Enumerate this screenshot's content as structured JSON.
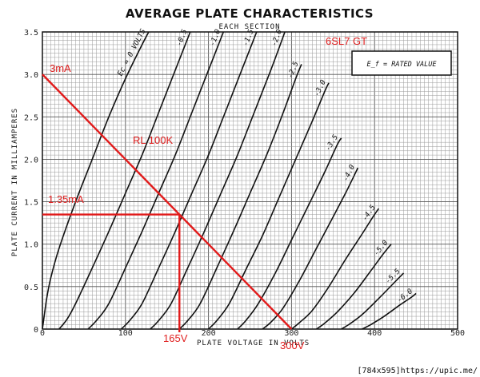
{
  "chart_data": {
    "type": "line",
    "title": "AVERAGE PLATE CHARACTERISTICS",
    "subtitle": "EACH SECTION",
    "tube": "6SL7 GT",
    "note": "E_f = RATED VALUE",
    "xlabel": "PLATE VOLTAGE IN VOLTS",
    "ylabel": "PLATE CURRENT IN MILLIAMPERES",
    "xlim": [
      0,
      500
    ],
    "ylim": [
      0,
      3.5
    ],
    "x_ticks": [
      0,
      100,
      200,
      300,
      400,
      500
    ],
    "y_ticks": [
      0,
      0.5,
      1.0,
      1.5,
      2.0,
      2.5,
      3.0,
      3.5
    ],
    "x_tick_labels": [
      "0",
      "100",
      "200",
      "300",
      "400",
      "500"
    ],
    "y_tick_labels": [
      "0",
      "0.5",
      "1.0",
      "1.5",
      "2.0",
      "2.5",
      "3.0",
      "3.5"
    ],
    "grid": true,
    "series": [
      {
        "name": "Ec = 0 VOLTS",
        "label": "Ec = 0 VOLTS",
        "points": [
          [
            0,
            0
          ],
          [
            5,
            0.35
          ],
          [
            10,
            0.6
          ],
          [
            20,
            0.95
          ],
          [
            40,
            1.5
          ],
          [
            60,
            2.0
          ],
          [
            80,
            2.5
          ],
          [
            100,
            2.95
          ],
          [
            120,
            3.35
          ],
          [
            128,
            3.5
          ]
        ]
      },
      {
        "name": "-0.5",
        "label": "-0.5",
        "points": [
          [
            20,
            0
          ],
          [
            30,
            0.12
          ],
          [
            40,
            0.3
          ],
          [
            60,
            0.72
          ],
          [
            80,
            1.15
          ],
          [
            100,
            1.6
          ],
          [
            120,
            2.05
          ],
          [
            140,
            2.55
          ],
          [
            160,
            3.05
          ],
          [
            178,
            3.5
          ]
        ]
      },
      {
        "name": "-1.0",
        "label": "-1.0",
        "points": [
          [
            55,
            0
          ],
          [
            65,
            0.1
          ],
          [
            80,
            0.3
          ],
          [
            100,
            0.72
          ],
          [
            120,
            1.15
          ],
          [
            140,
            1.6
          ],
          [
            160,
            2.05
          ],
          [
            180,
            2.55
          ],
          [
            200,
            3.05
          ],
          [
            218,
            3.5
          ]
        ]
      },
      {
        "name": "-1.5",
        "label": "-1.5",
        "points": [
          [
            95,
            0
          ],
          [
            105,
            0.1
          ],
          [
            120,
            0.3
          ],
          [
            140,
            0.72
          ],
          [
            160,
            1.15
          ],
          [
            180,
            1.6
          ],
          [
            200,
            2.05
          ],
          [
            220,
            2.55
          ],
          [
            240,
            3.05
          ],
          [
            258,
            3.5
          ]
        ]
      },
      {
        "name": "-2.0",
        "label": "-2.0",
        "points": [
          [
            130,
            0
          ],
          [
            140,
            0.1
          ],
          [
            155,
            0.3
          ],
          [
            175,
            0.72
          ],
          [
            195,
            1.15
          ],
          [
            215,
            1.6
          ],
          [
            235,
            2.05
          ],
          [
            255,
            2.55
          ],
          [
            275,
            3.05
          ],
          [
            292,
            3.5
          ]
        ]
      },
      {
        "name": "-2.5",
        "label": "-2.5",
        "points": [
          [
            165,
            0
          ],
          [
            175,
            0.1
          ],
          [
            190,
            0.3
          ],
          [
            210,
            0.72
          ],
          [
            230,
            1.15
          ],
          [
            250,
            1.6
          ],
          [
            270,
            2.05
          ],
          [
            290,
            2.55
          ],
          [
            305,
            2.95
          ],
          [
            312,
            3.12
          ]
        ]
      },
      {
        "name": "-3.0",
        "label": "-3.0",
        "points": [
          [
            200,
            0
          ],
          [
            210,
            0.1
          ],
          [
            225,
            0.3
          ],
          [
            245,
            0.7
          ],
          [
            265,
            1.1
          ],
          [
            285,
            1.55
          ],
          [
            305,
            2.0
          ],
          [
            325,
            2.45
          ],
          [
            340,
            2.8
          ],
          [
            345,
            2.9
          ]
        ]
      },
      {
        "name": "-3.5",
        "label": "-3.5",
        "points": [
          [
            235,
            0
          ],
          [
            245,
            0.1
          ],
          [
            260,
            0.3
          ],
          [
            280,
            0.65
          ],
          [
            300,
            1.05
          ],
          [
            320,
            1.45
          ],
          [
            340,
            1.85
          ],
          [
            355,
            2.17
          ],
          [
            360,
            2.25
          ]
        ]
      },
      {
        "name": "-4.0",
        "label": "-4.0",
        "points": [
          [
            265,
            0
          ],
          [
            275,
            0.08
          ],
          [
            290,
            0.25
          ],
          [
            310,
            0.58
          ],
          [
            330,
            0.95
          ],
          [
            350,
            1.32
          ],
          [
            365,
            1.6
          ],
          [
            375,
            1.8
          ],
          [
            380,
            1.9
          ]
        ]
      },
      {
        "name": "-4.5",
        "label": "-4.5",
        "points": [
          [
            300,
            0
          ],
          [
            310,
            0.08
          ],
          [
            325,
            0.22
          ],
          [
            345,
            0.5
          ],
          [
            365,
            0.82
          ],
          [
            385,
            1.12
          ],
          [
            398,
            1.32
          ],
          [
            405,
            1.42
          ]
        ]
      },
      {
        "name": "-5.0",
        "label": "-5.0",
        "points": [
          [
            330,
            0
          ],
          [
            340,
            0.07
          ],
          [
            355,
            0.2
          ],
          [
            375,
            0.42
          ],
          [
            395,
            0.68
          ],
          [
            410,
            0.88
          ],
          [
            420,
            1.0
          ]
        ]
      },
      {
        "name": "-5.5",
        "label": "-5.5",
        "points": [
          [
            360,
            0
          ],
          [
            370,
            0.06
          ],
          [
            385,
            0.17
          ],
          [
            405,
            0.36
          ],
          [
            425,
            0.56
          ],
          [
            435,
            0.66
          ]
        ]
      },
      {
        "name": "-6.0",
        "label": "-6.0",
        "points": [
          [
            385,
            0
          ],
          [
            395,
            0.05
          ],
          [
            410,
            0.14
          ],
          [
            430,
            0.28
          ],
          [
            445,
            0.38
          ],
          [
            450,
            0.42
          ]
        ]
      }
    ],
    "load_line": {
      "name": "RL 100K",
      "points": [
        [
          0,
          3.0
        ],
        [
          300,
          0
        ]
      ]
    },
    "operating_point": {
      "x": 165,
      "y": 1.35
    },
    "annotations": {
      "load_line_label": "RL 100K",
      "y_intercept_label": "3mA",
      "op_current_label": "1.35mA",
      "op_voltage_label": "165V",
      "x_intercept_label": "300V"
    }
  },
  "box_note": "E_f = RATED VALUE",
  "watermark": "[784x595]https://upic.me/",
  "colors": {
    "annotation": "#e11a1a",
    "ink": "#111111"
  }
}
